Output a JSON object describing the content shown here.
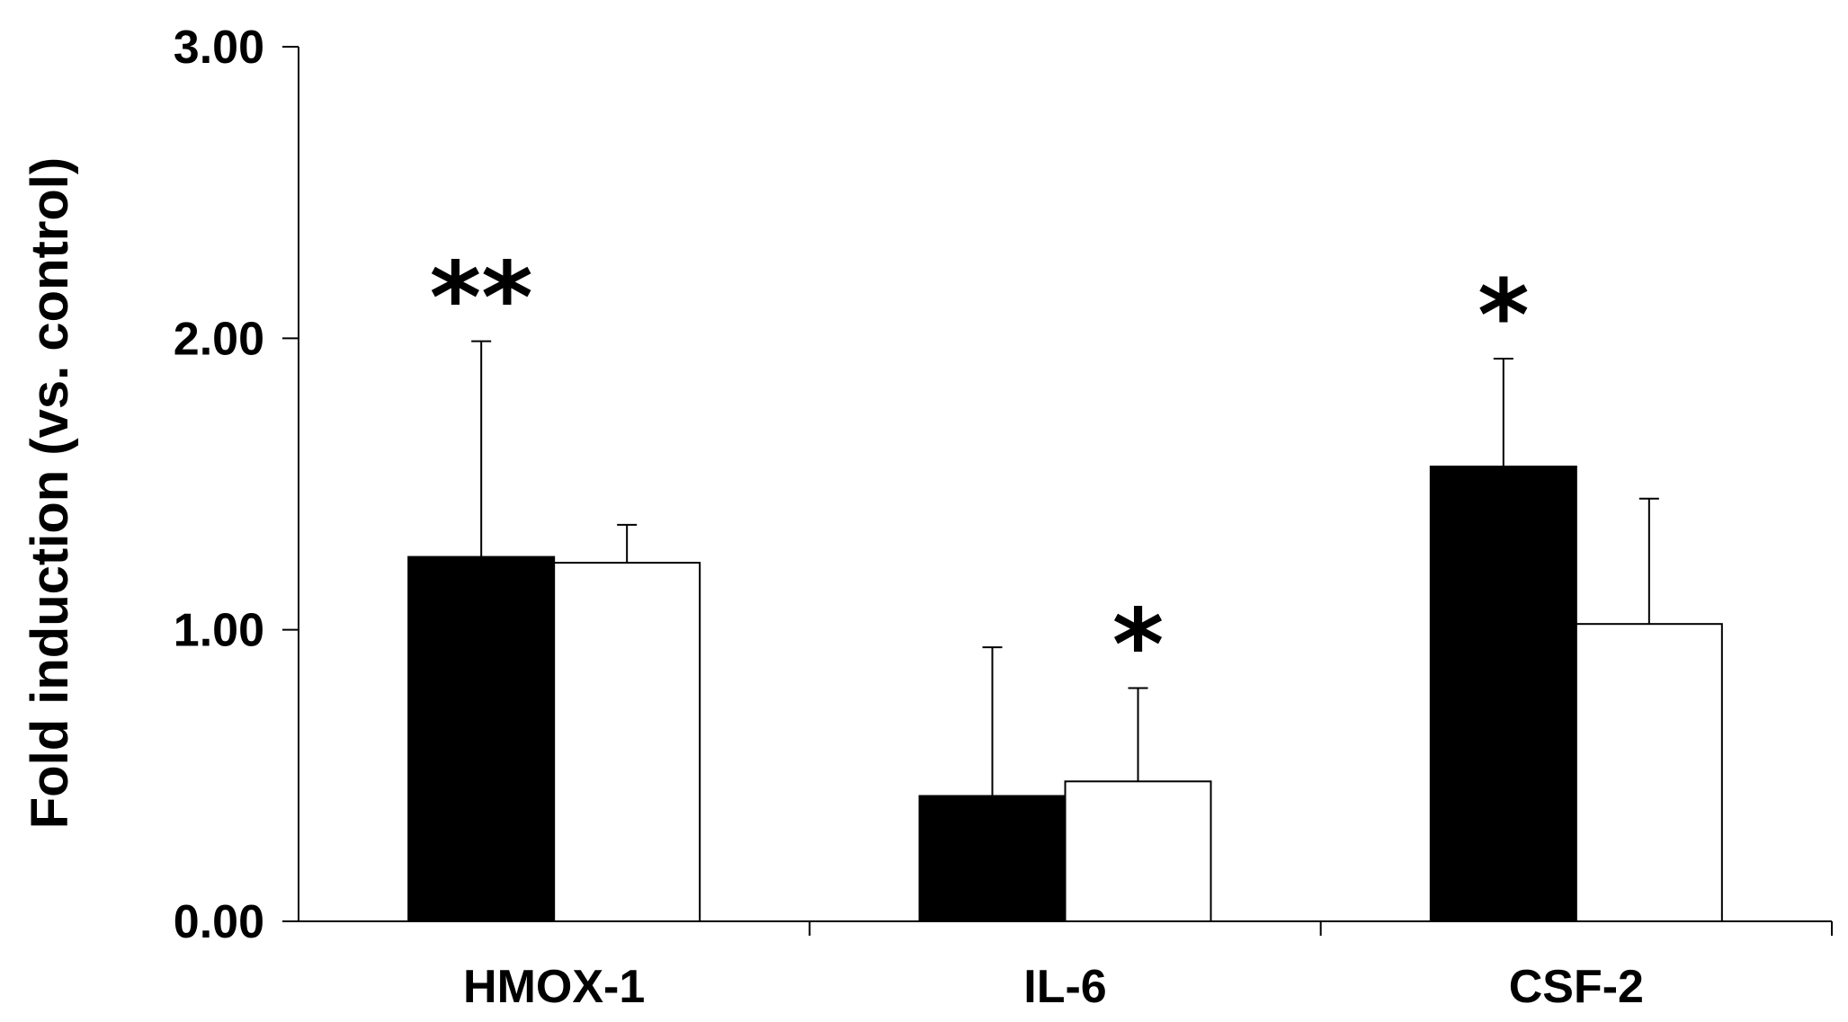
{
  "chart_data": {
    "type": "bar",
    "title": "",
    "xlabel": "",
    "ylabel": "Fold induction (vs. control)",
    "ylim": [
      0,
      3
    ],
    "yticks": [
      "0.00",
      "1.00",
      "2.00",
      "3.00"
    ],
    "categories": [
      "HMOX-1",
      "IL-6",
      "CSF-2"
    ],
    "grid": false,
    "legend": "none",
    "series": [
      {
        "fill": "#000000",
        "values": [
          1.25,
          0.43,
          1.56
        ],
        "error_upper": [
          1.99,
          0.94,
          1.93
        ],
        "significance": [
          "**",
          "",
          "*"
        ]
      },
      {
        "fill": "#ffffff",
        "values": [
          1.23,
          0.48,
          1.02
        ],
        "error_upper": [
          1.36,
          0.8,
          1.45
        ],
        "significance": [
          "",
          "*",
          ""
        ]
      }
    ]
  }
}
